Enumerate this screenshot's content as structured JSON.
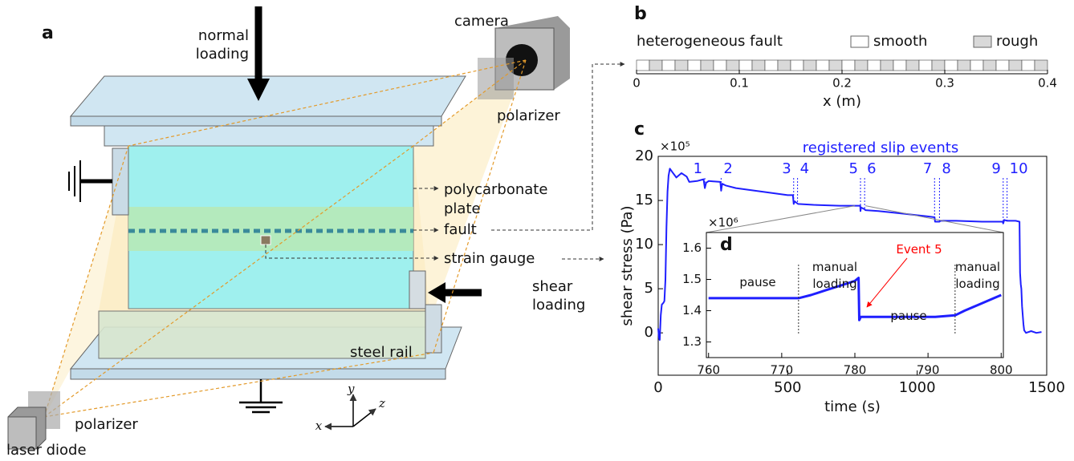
{
  "diagram": {
    "panel_label": "a",
    "normal_loading": [
      "normal",
      "loading"
    ],
    "camera": "camera",
    "polarizer_top": "polarizer",
    "polycarbonate_plate": [
      "polycarbonate",
      "plate"
    ],
    "fault": "fault",
    "strain_gauge": "strain gauge",
    "shear_loading": [
      "shear",
      "loading"
    ],
    "steel_rail": "steel rail",
    "polarizer_bottom": "polarizer",
    "laser_diode": "laser diode",
    "axes": {
      "x": "x",
      "y": "y",
      "z": "z"
    }
  },
  "chart_data": [
    {
      "type": "strip",
      "panel_label": "b",
      "title": "heterogeneous fault",
      "xlabel": "x (m)",
      "xlim": [
        0,
        0.4
      ],
      "xticks": [
        0,
        0.1,
        0.2,
        0.3,
        0.4
      ],
      "bins": [
        0,
        0.0125,
        0.025,
        0.0375,
        0.05,
        0.0625,
        0.075,
        0.0875,
        0.1,
        0.1125,
        0.125,
        0.1375,
        0.15,
        0.1625,
        0.175,
        0.1875,
        0.2,
        0.2125,
        0.225,
        0.2375,
        0.25,
        0.2625,
        0.275,
        0.2875,
        0.3,
        0.3125,
        0.325,
        0.3375,
        0.35,
        0.3625,
        0.375,
        0.3875,
        0.4
      ],
      "kinds": [
        "smooth",
        "rough",
        "smooth",
        "rough",
        "smooth",
        "rough",
        "smooth",
        "rough",
        "smooth",
        "rough",
        "smooth",
        "rough",
        "smooth",
        "rough",
        "smooth",
        "rough",
        "smooth",
        "rough",
        "smooth",
        "rough",
        "smooth",
        "rough",
        "smooth",
        "rough",
        "smooth",
        "rough",
        "smooth",
        "rough",
        "smooth",
        "rough",
        "smooth",
        "rough"
      ],
      "series": [
        {
          "name": "smooth",
          "color": "#ffffff"
        },
        {
          "name": "rough",
          "color": "#d9d9d9"
        }
      ]
    },
    {
      "type": "line",
      "panel_label": "c",
      "xlabel": "time (s)",
      "ylabel": "shear stress (Pa)",
      "y_multiplier": "×10⁵",
      "annotation": "registered slip events",
      "color": "#1f1fff",
      "xlim": [
        0,
        1500
      ],
      "xticks": [
        0,
        500,
        1000,
        1500
      ],
      "ylim": [
        -4.8,
        20
      ],
      "yticks": [
        0,
        5,
        10,
        15,
        20
      ],
      "x": [
        0,
        3,
        6,
        10,
        14,
        20,
        24,
        28,
        32,
        36,
        40,
        45,
        55,
        70,
        90,
        110,
        120,
        150,
        175,
        180,
        185,
        195,
        240,
        243,
        247,
        260,
        300,
        400,
        500,
        520,
        523,
        527,
        540,
        600,
        700,
        780,
        781,
        783,
        797,
        800,
        850,
        950,
        1040,
        1067,
        1069,
        1086,
        1090,
        1150,
        1250,
        1330,
        1332,
        1336,
        1347,
        1350,
        1380,
        1395,
        1397,
        1400,
        1402,
        1405,
        1410,
        1413,
        1420,
        1440,
        1460,
        1480
      ],
      "values": [
        0.5,
        -0.6,
        -0.8,
        2,
        3.2,
        3.4,
        3.6,
        6,
        12,
        16,
        17.8,
        18.6,
        18.2,
        17.6,
        18.1,
        17.7,
        17.1,
        17.2,
        17.4,
        16.4,
        17,
        17.2,
        17.1,
        16.1,
        16.9,
        16.7,
        16.4,
        16.0,
        15.6,
        15.6,
        14.6,
        14.9,
        14.6,
        14.5,
        14.4,
        14.4,
        13.8,
        14.2,
        14.0,
        13.9,
        13.8,
        13.5,
        13.2,
        13.1,
        12.6,
        12.6,
        12.7,
        12.7,
        12.6,
        12.6,
        12.4,
        12.8,
        12.7,
        12.7,
        12.7,
        12.6,
        6.8,
        5.5,
        5.0,
        3,
        1.0,
        0.3,
        0.0,
        0.2,
        0.0,
        0.1
      ],
      "events": {
        "x": [
          180,
          243,
          523,
          538,
          781,
          797,
          1067,
          1086,
          1332,
          1347
        ],
        "labels": [
          "1",
          "2",
          "3",
          "4",
          "5",
          "6",
          "7",
          "8",
          "9",
          "10"
        ]
      }
    },
    {
      "type": "line",
      "panel_label": "d",
      "y_multiplier": "×10⁶",
      "color": "#1f1fff",
      "xlim": [
        759.7,
        800.3
      ],
      "xticks": [
        760,
        770,
        780,
        790,
        800
      ],
      "ylim": [
        1.25,
        1.65
      ],
      "yticks": [
        1.3,
        1.4,
        1.5,
        1.6
      ],
      "x": [
        760,
        762,
        765,
        768,
        771,
        772.3,
        774,
        776,
        778,
        780,
        780.5,
        780.6,
        780.8,
        782,
        785,
        788,
        791,
        793.7,
        795,
        797,
        799,
        800
      ],
      "values": [
        1.44,
        1.44,
        1.44,
        1.44,
        1.44,
        1.44,
        1.45,
        1.465,
        1.48,
        1.495,
        1.505,
        1.37,
        1.38,
        1.38,
        1.38,
        1.38,
        1.38,
        1.385,
        1.4,
        1.42,
        1.44,
        1.45
      ],
      "vlines": [
        772.3,
        793.7
      ],
      "annotations": [
        {
          "text": [
            "pause"
          ]
        },
        {
          "text": [
            "manual",
            "loading"
          ]
        },
        {
          "text": [
            "pause"
          ]
        },
        {
          "text": [
            "manual",
            "loading"
          ]
        },
        {
          "text": [
            "Event 5"
          ],
          "color": "#ff0000"
        }
      ]
    }
  ]
}
